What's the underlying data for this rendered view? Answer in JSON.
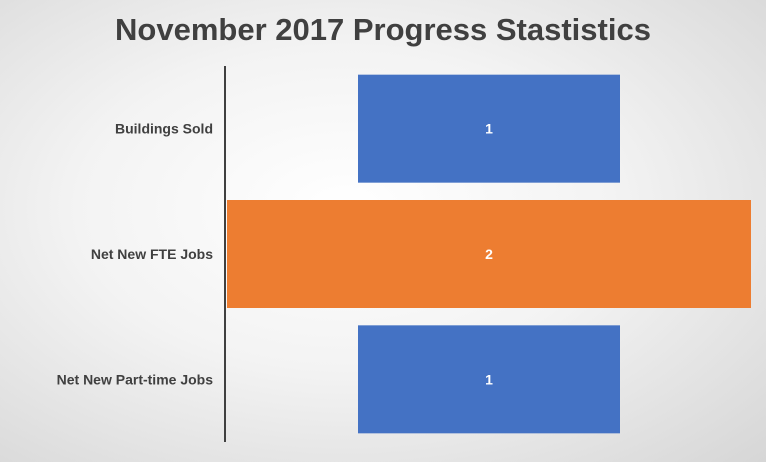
{
  "chart_data": {
    "type": "bar",
    "orientation": "horizontal",
    "title": "November 2017 Progress Stastistics",
    "categories": [
      "Buildings Sold",
      "Net New FTE Jobs",
      "Net New Part-time Jobs"
    ],
    "values": [
      1,
      2,
      1
    ],
    "data_labels": [
      "1",
      "2",
      "1"
    ],
    "bar_colors": [
      "#4472C4",
      "#ED7D31",
      "#4472C4"
    ],
    "axis_color": "#404040",
    "grid": false,
    "legend": "none"
  }
}
